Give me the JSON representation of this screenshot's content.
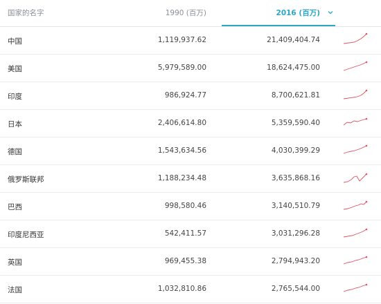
{
  "header": {
    "name_col": "国家的名字",
    "col_1990": "1990 (百万)",
    "col_2016": "2016 (百万)",
    "sort_icon": "chevron-down-icon",
    "accent_color": "#2aa6c9"
  },
  "spark_color": "#e05260",
  "rows": [
    {
      "name": "中国",
      "v1990": "1,119,937.62",
      "v2016": "21,409,404.74"
    },
    {
      "name": "美国",
      "v1990": "5,979,589.00",
      "v2016": "18,624,475.00"
    },
    {
      "name": "印度",
      "v1990": "986,924.77",
      "v2016": "8,700,621.81"
    },
    {
      "name": "日本",
      "v1990": "2,406,614.80",
      "v2016": "5,359,590.40"
    },
    {
      "name": "德国",
      "v1990": "1,543,634.56",
      "v2016": "4,030,399.29"
    },
    {
      "name": "俄罗斯联邦",
      "v1990": "1,188,234.48",
      "v2016": "3,635,868.16"
    },
    {
      "name": "巴西",
      "v1990": "998,580.46",
      "v2016": "3,140,510.79"
    },
    {
      "name": "印度尼西亚",
      "v1990": "542,411.57",
      "v2016": "3,031,296.28"
    },
    {
      "name": "英国",
      "v1990": "969,455.38",
      "v2016": "2,794,943.20"
    },
    {
      "name": "法国",
      "v1990": "1,032,810.86",
      "v2016": "2,765,544.00"
    }
  ]
}
